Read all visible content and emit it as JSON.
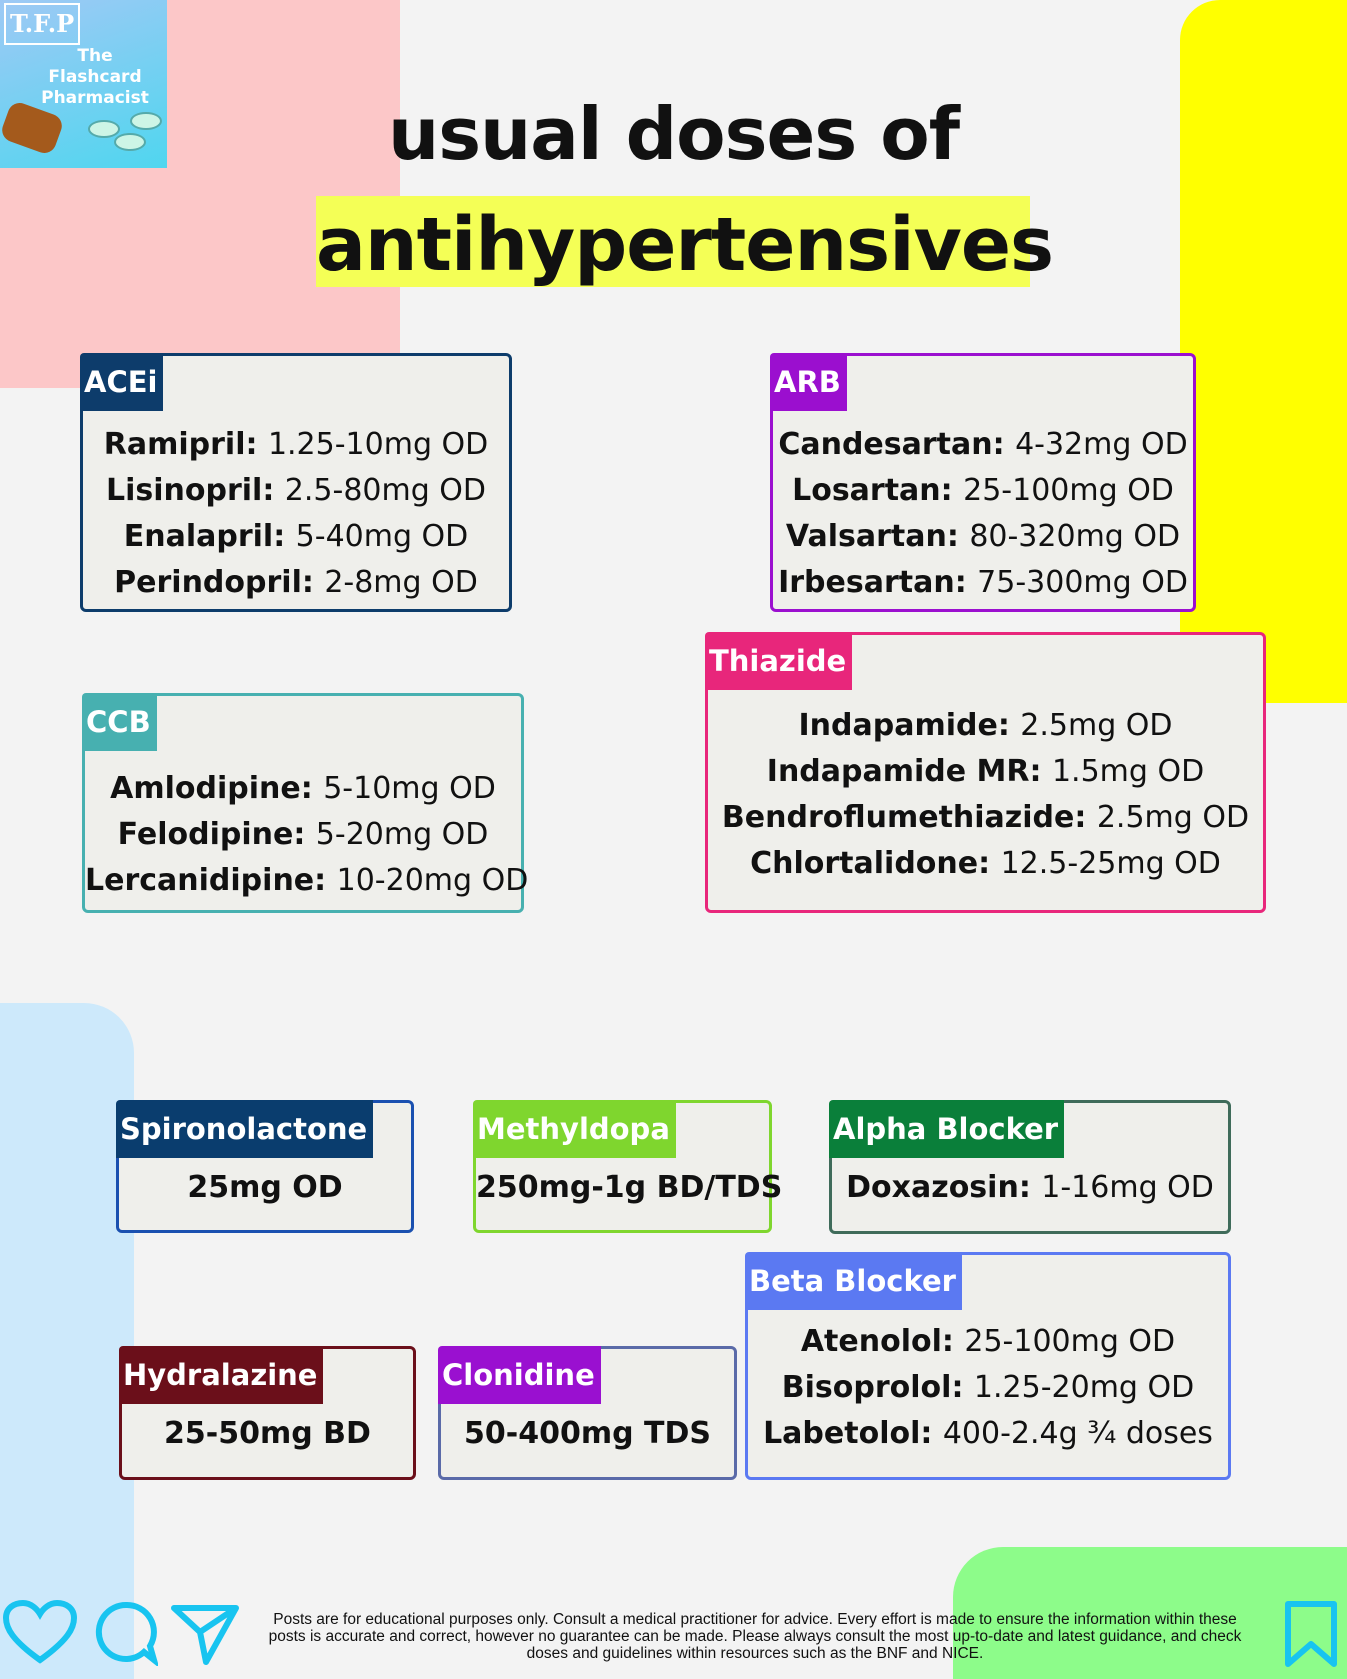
{
  "logo": {
    "monogram": "T.F.P",
    "name_lines": [
      "The",
      "Flashcard",
      "Pharmacist"
    ]
  },
  "title": {
    "line1": "usual doses of",
    "line2": "antihypertensives"
  },
  "boxes": {
    "acei": {
      "tag": "ACEi",
      "color": "#0d3c6b",
      "items": [
        {
          "drug": "Ramipril",
          "dose": "1.25-10mg OD"
        },
        {
          "drug": "Lisinopril",
          "dose": "2.5-80mg OD"
        },
        {
          "drug": "Enalapril",
          "dose": "5-40mg OD"
        },
        {
          "drug": "Perindopril",
          "dose": "2-8mg OD"
        }
      ]
    },
    "arb": {
      "tag": "ARB",
      "color": "#9b0fcf",
      "items": [
        {
          "drug": "Candesartan",
          "dose": "4-32mg OD"
        },
        {
          "drug": "Losartan",
          "dose": "25-100mg OD"
        },
        {
          "drug": "Valsartan",
          "dose": "80-320mg OD"
        },
        {
          "drug": "Irbesartan",
          "dose": "75-300mg OD"
        }
      ]
    },
    "ccb": {
      "tag": "CCB",
      "color": "#47b0b0",
      "items": [
        {
          "drug": "Amlodipine",
          "dose": "5-10mg OD"
        },
        {
          "drug": "Felodipine",
          "dose": "5-20mg OD"
        },
        {
          "drug": "Lercanidipine",
          "dose": "10-20mg OD"
        }
      ]
    },
    "thiazide": {
      "tag": "Thiazide",
      "color": "#e8267b",
      "items": [
        {
          "drug": "Indapamide",
          "dose": "2.5mg OD"
        },
        {
          "drug": "Indapamide MR",
          "dose": "1.5mg OD"
        },
        {
          "drug": "Bendroflumethiazide",
          "dose": "2.5mg OD"
        },
        {
          "drug": "Chlortalidone",
          "dose": "12.5-25mg OD"
        }
      ]
    },
    "spiro": {
      "tag": "Spironolactone",
      "color": "#0a3d6e",
      "border": "#1a50b0",
      "dose": "25mg OD"
    },
    "methyl": {
      "tag": "Methyldopa",
      "color": "#7fd62e",
      "dose": "250mg-1g BD/TDS"
    },
    "alpha": {
      "tag": "Alpha Blocker",
      "color": "#0a7f3a",
      "border": "#3f6b5a",
      "items": [
        {
          "drug": "Doxazosin",
          "dose": "1-16mg OD"
        }
      ]
    },
    "beta": {
      "tag": "Beta Blocker",
      "color": "#5b79f2",
      "items": [
        {
          "drug": "Atenolol",
          "dose": "25-100mg OD"
        },
        {
          "drug": "Bisoprolol",
          "dose": "1.25-20mg OD"
        },
        {
          "drug": "Labetolol",
          "dose": "400-2.4g ¾ doses"
        }
      ]
    },
    "hydral": {
      "tag": "Hydralazine",
      "color": "#6b0f1a",
      "dose": "25-50mg BD"
    },
    "clon": {
      "tag": "Clonidine",
      "color": "#9a10d0",
      "border": "#5a6aa8",
      "dose": "50-400mg TDS"
    }
  },
  "footer": {
    "disclaimer": "Posts are for educational purposes only.  Consult a medical practitioner for advice. Every effort is made to ensure the information within these posts is accurate and correct, however no guarantee can be made. Please always consult the most up-to-date and latest guidance, and check doses and guidelines within resources such as the BNF and NICE."
  },
  "icons": [
    "heart-icon",
    "comment-icon",
    "send-icon",
    "bookmark-icon"
  ],
  "accent": "#18c4f0"
}
